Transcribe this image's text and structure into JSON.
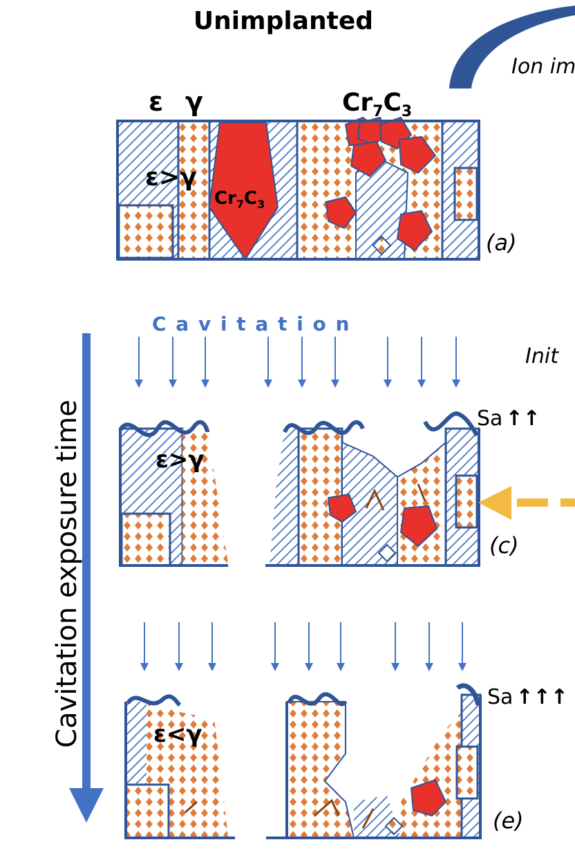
{
  "title": "Unimplanted",
  "side_label": "Ion im",
  "vertical_axis_label": "Cavitation exposure time",
  "cavitation_label": "C a v i t a t i o n",
  "right_text_1": "Init",
  "panels": {
    "a": {
      "tag": "(a)",
      "phase_eps": "ε",
      "phase_gamma": "γ",
      "carbide_top": "Cr",
      "carbide_top_sub7": "7",
      "carbide_top_c": "C",
      "carbide_top_sub3": "3",
      "ratio": "ε>γ",
      "carbide_inner": "Cr",
      "carbide_inner_sub7": "7",
      "carbide_inner_c": "C",
      "carbide_inner_sub3": "3"
    },
    "c": {
      "tag": "(c)",
      "ratio": "ε>γ",
      "roughness": "Sa",
      "roughness_arrows": "↑↑"
    },
    "e": {
      "tag": "(e)",
      "ratio": "ε<γ",
      "roughness": "Sa",
      "roughness_arrows": "↑↑↑"
    }
  },
  "colors": {
    "epsilon_hatch": "#4472c4",
    "gamma_dots": "#e07b39",
    "carbide": "#e8312a",
    "outline": "#2f5597",
    "arrow_blue": "#4472c4",
    "dashed_arrow": "#f4b942"
  }
}
